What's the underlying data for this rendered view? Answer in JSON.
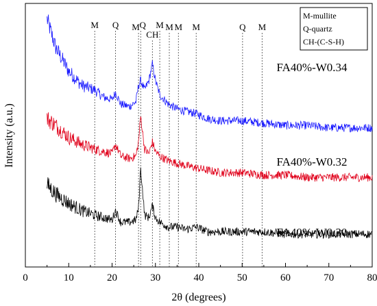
{
  "chart_data": {
    "type": "line",
    "xlabel": "2θ (degrees)",
    "ylabel": "Intensity (a.u.)",
    "xlim": [
      0,
      80
    ],
    "x_ticks": [
      "0",
      "10",
      "20",
      "30",
      "40",
      "50",
      "60",
      "70",
      "80"
    ],
    "y_ticks_labeled": false,
    "grid": false,
    "legend": {
      "placement": "top-right",
      "entries": [
        "M-mullite",
        "Q-quartz",
        "CH-(C-S-H)"
      ]
    },
    "peak_markers": [
      {
        "label": "M",
        "x": 16.0
      },
      {
        "label": "Q",
        "x": 20.8
      },
      {
        "label": "M",
        "x": 26.1
      },
      {
        "label": "Q",
        "x": 26.6
      },
      {
        "label": "CH",
        "x": 29.3
      },
      {
        "label": "M",
        "x": 31.0
      },
      {
        "label": "M",
        "x": 33.2
      },
      {
        "label": "M",
        "x": 35.3
      },
      {
        "label": "M",
        "x": 39.4
      },
      {
        "label": "Q",
        "x": 50.1
      },
      {
        "label": "M",
        "x": 54.6
      }
    ],
    "series": [
      {
        "name": "FA40%-W0.34",
        "color": "#1a1aff",
        "x_range": [
          5,
          80
        ],
        "x": [
          5,
          7,
          10,
          13,
          16,
          18,
          20,
          20.8,
          22,
          24,
          25.5,
          26.1,
          26.6,
          27.5,
          28.5,
          29.3,
          30,
          31,
          33,
          35,
          37,
          39.4,
          42,
          45,
          50,
          55,
          60,
          65,
          70,
          75,
          80
        ],
        "y": [
          1.0,
          0.88,
          0.78,
          0.72,
          0.7,
          0.67,
          0.66,
          0.69,
          0.64,
          0.63,
          0.65,
          0.72,
          0.74,
          0.7,
          0.74,
          0.81,
          0.74,
          0.68,
          0.64,
          0.62,
          0.61,
          0.6,
          0.58,
          0.57,
          0.57,
          0.56,
          0.55,
          0.55,
          0.54,
          0.54,
          0.54
        ]
      },
      {
        "name": "FA40%-W0.32",
        "color": "#e0001a",
        "x_range": [
          5,
          80
        ],
        "x": [
          5,
          7,
          10,
          13,
          16,
          18,
          20,
          20.8,
          22,
          24,
          25.5,
          26.1,
          26.6,
          27.5,
          28.5,
          29.3,
          30,
          31,
          33,
          35,
          37,
          39.4,
          42,
          45,
          50,
          55,
          60,
          65,
          70,
          75,
          80
        ],
        "y": [
          0.58,
          0.55,
          0.5,
          0.47,
          0.45,
          0.44,
          0.43,
          0.47,
          0.42,
          0.41,
          0.42,
          0.48,
          0.59,
          0.45,
          0.43,
          0.48,
          0.44,
          0.42,
          0.4,
          0.39,
          0.38,
          0.37,
          0.36,
          0.35,
          0.35,
          0.34,
          0.34,
          0.33,
          0.33,
          0.33,
          0.33
        ]
      },
      {
        "name": "FA40%-W0.30",
        "color": "#000000",
        "x_range": [
          5,
          80
        ],
        "x": [
          5,
          7,
          10,
          13,
          16,
          18,
          20,
          20.8,
          22,
          24,
          25.5,
          26.1,
          26.6,
          27.5,
          28.5,
          29.3,
          30,
          31,
          33,
          35,
          37,
          39.4,
          42,
          45,
          50,
          55,
          60,
          65,
          70,
          75,
          80
        ],
        "y": [
          0.3,
          0.26,
          0.22,
          0.19,
          0.17,
          0.16,
          0.15,
          0.19,
          0.14,
          0.14,
          0.15,
          0.2,
          0.37,
          0.17,
          0.16,
          0.21,
          0.16,
          0.14,
          0.12,
          0.12,
          0.11,
          0.12,
          0.1,
          0.1,
          0.1,
          0.1,
          0.09,
          0.09,
          0.09,
          0.09,
          0.09
        ]
      }
    ]
  }
}
